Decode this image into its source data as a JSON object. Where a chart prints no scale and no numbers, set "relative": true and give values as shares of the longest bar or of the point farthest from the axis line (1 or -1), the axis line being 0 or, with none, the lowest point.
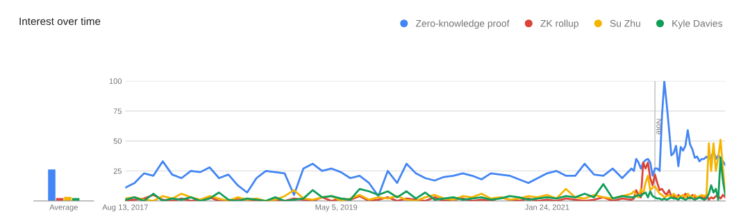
{
  "chart_data": [
    {
      "type": "bar",
      "title": "Interest over time",
      "relative": true,
      "categories": [
        "Average"
      ],
      "series": [
        {
          "color": "#4285f4",
          "values": [
            1
          ]
        },
        {
          "color": "#db4437",
          "values": [
            0.09
          ]
        },
        {
          "color": "#f4b400",
          "values": [
            0.13
          ]
        },
        {
          "color": "#0f9d58",
          "values": [
            0.09
          ]
        }
      ]
    },
    {
      "type": "line",
      "x": [
        "2017-08-13",
        "2017-09-10",
        "2017-10-08",
        "2017-11-05",
        "2017-12-03",
        "2017-12-31",
        "2018-01-28",
        "2018-02-25",
        "2018-03-25",
        "2018-04-22",
        "2018-05-20",
        "2018-06-17",
        "2018-07-15",
        "2018-08-12",
        "2018-09-09",
        "2018-10-07",
        "2018-11-04",
        "2018-12-02",
        "2018-12-30",
        "2019-01-27",
        "2019-02-24",
        "2019-03-24",
        "2019-04-21",
        "2019-05-19",
        "2019-06-16",
        "2019-07-14",
        "2019-08-11",
        "2019-09-08",
        "2019-10-06",
        "2019-11-03",
        "2019-12-01",
        "2019-12-29",
        "2020-01-26",
        "2020-02-23",
        "2020-03-22",
        "2020-04-19",
        "2020-05-17",
        "2020-06-14",
        "2020-07-12",
        "2020-08-09",
        "2020-09-06",
        "2020-10-04",
        "2020-11-01",
        "2020-11-29",
        "2020-12-27",
        "2021-01-24",
        "2021-02-21",
        "2021-03-21",
        "2021-04-18",
        "2021-05-16",
        "2021-06-13",
        "2021-07-11",
        "2021-08-08",
        "2021-09-05",
        "2021-10-03",
        "2021-10-10",
        "2021-10-17",
        "2021-10-24",
        "2021-10-31",
        "2021-11-07",
        "2021-11-14",
        "2021-11-21",
        "2021-11-28",
        "2021-12-05",
        "2021-12-12",
        "2021-12-19",
        "2021-12-26",
        "2022-01-02",
        "2022-01-09",
        "2022-01-16",
        "2022-01-23",
        "2022-01-30",
        "2022-02-06",
        "2022-02-13",
        "2022-02-20",
        "2022-02-27",
        "2022-03-06",
        "2022-03-13",
        "2022-03-20",
        "2022-03-27",
        "2022-04-03",
        "2022-04-10",
        "2022-04-17",
        "2022-04-24",
        "2022-05-01",
        "2022-05-08",
        "2022-05-15",
        "2022-05-22",
        "2022-05-29",
        "2022-06-05",
        "2022-06-12",
        "2022-06-19",
        "2022-06-26",
        "2022-07-03",
        "2022-07-10"
      ],
      "series": [
        {
          "name": "Zero-knowledge proof",
          "color": "#4285f4",
          "values": [
            11,
            15,
            23,
            21,
            33,
            22,
            19,
            25,
            24,
            28,
            19,
            22,
            13,
            7,
            19,
            25,
            24,
            23,
            5,
            27,
            31,
            25,
            27,
            24,
            19,
            21,
            15,
            4,
            25,
            15,
            31,
            23,
            19,
            17,
            20,
            21,
            23,
            21,
            18,
            23,
            22,
            21,
            18,
            15,
            19,
            23,
            25,
            21,
            21,
            31,
            22,
            21,
            27,
            19,
            27,
            25,
            35,
            32,
            27,
            32,
            34,
            35,
            32,
            21,
            27,
            27,
            25,
            71,
            100,
            81,
            60,
            38,
            40,
            46,
            29,
            45,
            42,
            46,
            59,
            47,
            43,
            36,
            37,
            33,
            35,
            35,
            37,
            35,
            36,
            42,
            35,
            38,
            36,
            33,
            30
          ]
        },
        {
          "name": "ZK rollup",
          "color": "#db4437",
          "values": [
            0,
            1,
            2,
            5,
            1,
            0,
            2,
            0,
            1,
            3,
            0,
            0,
            2,
            1,
            0,
            0,
            1,
            0,
            2,
            1,
            0,
            3,
            0,
            2,
            1,
            4,
            0,
            1,
            3,
            0,
            2,
            1,
            0,
            3,
            0,
            1,
            2,
            0,
            1,
            0,
            3,
            1,
            0,
            2,
            0,
            1,
            0,
            2,
            1,
            0,
            1,
            3,
            0,
            2,
            1,
            2,
            9,
            5,
            3,
            32,
            27,
            32,
            19,
            13,
            22,
            15,
            9,
            10,
            7,
            5,
            9,
            4,
            4,
            2,
            5,
            3,
            2,
            6,
            3,
            2,
            5,
            3,
            2,
            4,
            3,
            2,
            5,
            1,
            3,
            2,
            4,
            4,
            2,
            5,
            3
          ]
        },
        {
          "name": "Su Zhu",
          "color": "#f4b400",
          "values": [
            2,
            3,
            1,
            0,
            4,
            2,
            6,
            3,
            1,
            4,
            2,
            0,
            3,
            1,
            2,
            0,
            1,
            4,
            9,
            2,
            1,
            3,
            4,
            0,
            2,
            5,
            1,
            3,
            2,
            4,
            1,
            0,
            3,
            5,
            2,
            1,
            4,
            3,
            6,
            2,
            3,
            1,
            2,
            4,
            3,
            5,
            2,
            10,
            3,
            2,
            5,
            3,
            2,
            4,
            6,
            8,
            5,
            3,
            10,
            6,
            15,
            21,
            9,
            11,
            12,
            9,
            6,
            5,
            3,
            4,
            5,
            3,
            6,
            4,
            3,
            4,
            5,
            3,
            6,
            4,
            3,
            5,
            3,
            4,
            5,
            4,
            5,
            48,
            25,
            48,
            25,
            36,
            51,
            27,
            7
          ]
        },
        {
          "name": "Kyle Davies",
          "color": "#0f9d58",
          "values": [
            1,
            3,
            0,
            6,
            0,
            2,
            1,
            3,
            0,
            2,
            7,
            1,
            0,
            2,
            1,
            0,
            3,
            0,
            1,
            2,
            9,
            3,
            4,
            2,
            1,
            10,
            8,
            5,
            8,
            3,
            8,
            2,
            7,
            1,
            2,
            3,
            1,
            2,
            3,
            1,
            2,
            4,
            3,
            1,
            2,
            3,
            2,
            4,
            3,
            6,
            3,
            14,
            2,
            4,
            3,
            3,
            4,
            5,
            4,
            6,
            7,
            3,
            8,
            4,
            3,
            2,
            2,
            1,
            2,
            1,
            2,
            3,
            2,
            2,
            1,
            3,
            2,
            1,
            2,
            3,
            2,
            1,
            2,
            3,
            2,
            1,
            2,
            6,
            13,
            7,
            10,
            1,
            36,
            17,
            5
          ]
        }
      ],
      "xlim": [
        "2017-08-13",
        "2022-07-10"
      ],
      "xticks": [
        {
          "value": "2017-08-13",
          "label": "Aug 13, 2017"
        },
        {
          "value": "2019-05-05",
          "label": "May 5, 2019"
        },
        {
          "value": "2021-01-24",
          "label": "Jan 24, 2021"
        }
      ],
      "ylim": [
        0,
        100
      ],
      "yticks": [
        {
          "value": 0,
          "label": null
        },
        25,
        50,
        75,
        100
      ],
      "grid": "y",
      "legend": "top right",
      "marker": "none",
      "line_style": "solid",
      "ref_lines": [
        {
          "axis": "x",
          "value": "2021-12-12",
          "label": "Note",
          "color": "#bdbdbd"
        }
      ]
    }
  ]
}
